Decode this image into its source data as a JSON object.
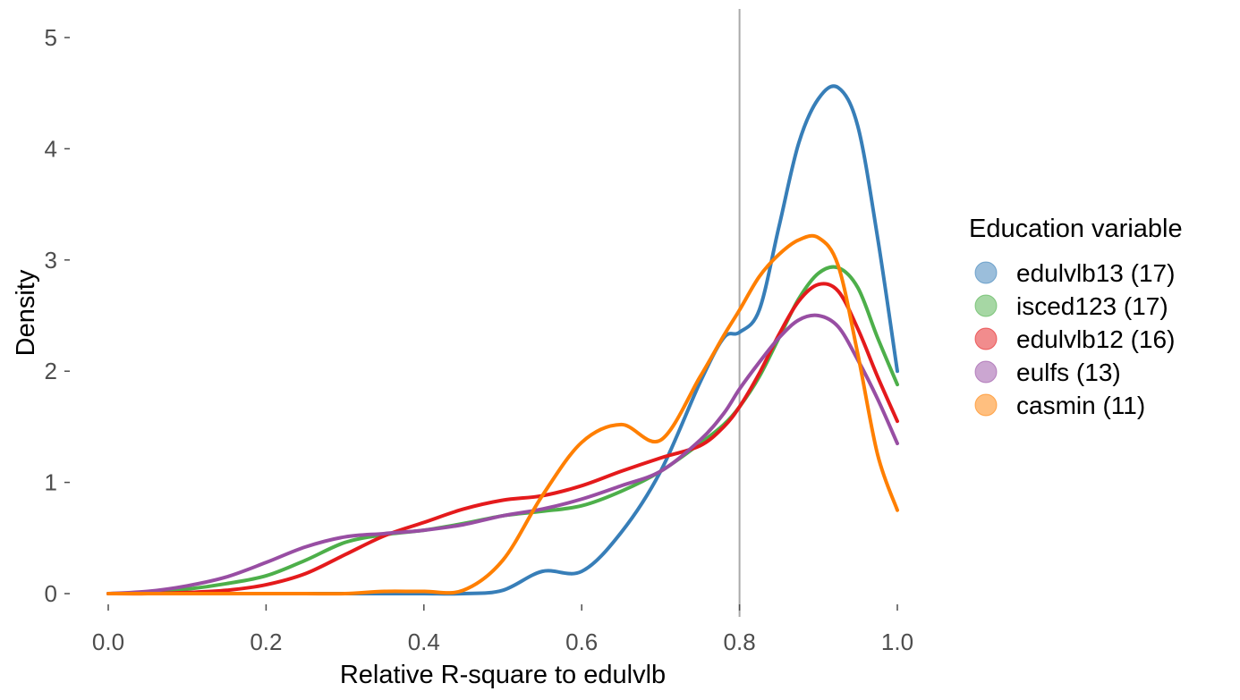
{
  "chart_data": {
    "type": "line",
    "xlabel": "Relative R-square to edulvlb",
    "ylabel": "Density",
    "xlim": [
      0.0,
      1.0
    ],
    "ylim": [
      0,
      5
    ],
    "x_ticks": [
      "0.0",
      "0.2",
      "0.4",
      "0.6",
      "0.8",
      "1.0"
    ],
    "y_ticks": [
      "0",
      "1",
      "2",
      "3",
      "4",
      "5"
    ],
    "grid": false,
    "reference_line": {
      "orientation": "vertical",
      "x": 0.8,
      "color": "#aaaaaa"
    },
    "legend": {
      "title": "Education variable",
      "placement": "right"
    },
    "x": [
      0.0,
      0.05,
      0.1,
      0.15,
      0.2,
      0.25,
      0.3,
      0.35,
      0.4,
      0.45,
      0.5,
      0.55,
      0.6,
      0.65,
      0.7,
      0.75,
      0.78,
      0.8,
      0.825,
      0.85,
      0.875,
      0.9,
      0.925,
      0.95,
      0.975,
      1.0
    ],
    "series": [
      {
        "name": "edulvlb13 (17)",
        "color": "#377eb8",
        "values": [
          0,
          0,
          0,
          0,
          0,
          0,
          0,
          0,
          0,
          0,
          0.03,
          0.2,
          0.2,
          0.55,
          1.1,
          1.9,
          2.3,
          2.35,
          2.55,
          3.3,
          4.05,
          4.45,
          4.55,
          4.2,
          3.2,
          2.0
        ]
      },
      {
        "name": "isced123 (17)",
        "color": "#4daf4a",
        "values": [
          0,
          0.01,
          0.04,
          0.09,
          0.16,
          0.3,
          0.46,
          0.53,
          0.57,
          0.63,
          0.7,
          0.74,
          0.79,
          0.92,
          1.1,
          1.35,
          1.52,
          1.68,
          1.95,
          2.3,
          2.65,
          2.88,
          2.93,
          2.75,
          2.3,
          1.88
        ]
      },
      {
        "name": "edulvlb12 (16)",
        "color": "#e41a1c",
        "values": [
          0,
          0,
          0.01,
          0.03,
          0.08,
          0.18,
          0.35,
          0.52,
          0.64,
          0.76,
          0.84,
          0.88,
          0.97,
          1.1,
          1.22,
          1.33,
          1.5,
          1.68,
          1.98,
          2.33,
          2.63,
          2.78,
          2.72,
          2.38,
          1.95,
          1.55
        ]
      },
      {
        "name": "eulfs (13)",
        "color": "#984ea3",
        "values": [
          0,
          0.02,
          0.07,
          0.15,
          0.28,
          0.42,
          0.51,
          0.54,
          0.57,
          0.62,
          0.7,
          0.76,
          0.85,
          0.97,
          1.1,
          1.38,
          1.62,
          1.84,
          2.08,
          2.3,
          2.46,
          2.5,
          2.4,
          2.1,
          1.75,
          1.35
        ]
      },
      {
        "name": "casmin (11)",
        "color": "#ff7f00",
        "values": [
          0,
          0,
          0,
          0,
          0,
          0,
          0,
          0.02,
          0.02,
          0.03,
          0.3,
          0.88,
          1.36,
          1.52,
          1.38,
          1.95,
          2.32,
          2.55,
          2.85,
          3.05,
          3.18,
          3.2,
          2.95,
          2.15,
          1.25,
          0.75
        ]
      }
    ]
  }
}
